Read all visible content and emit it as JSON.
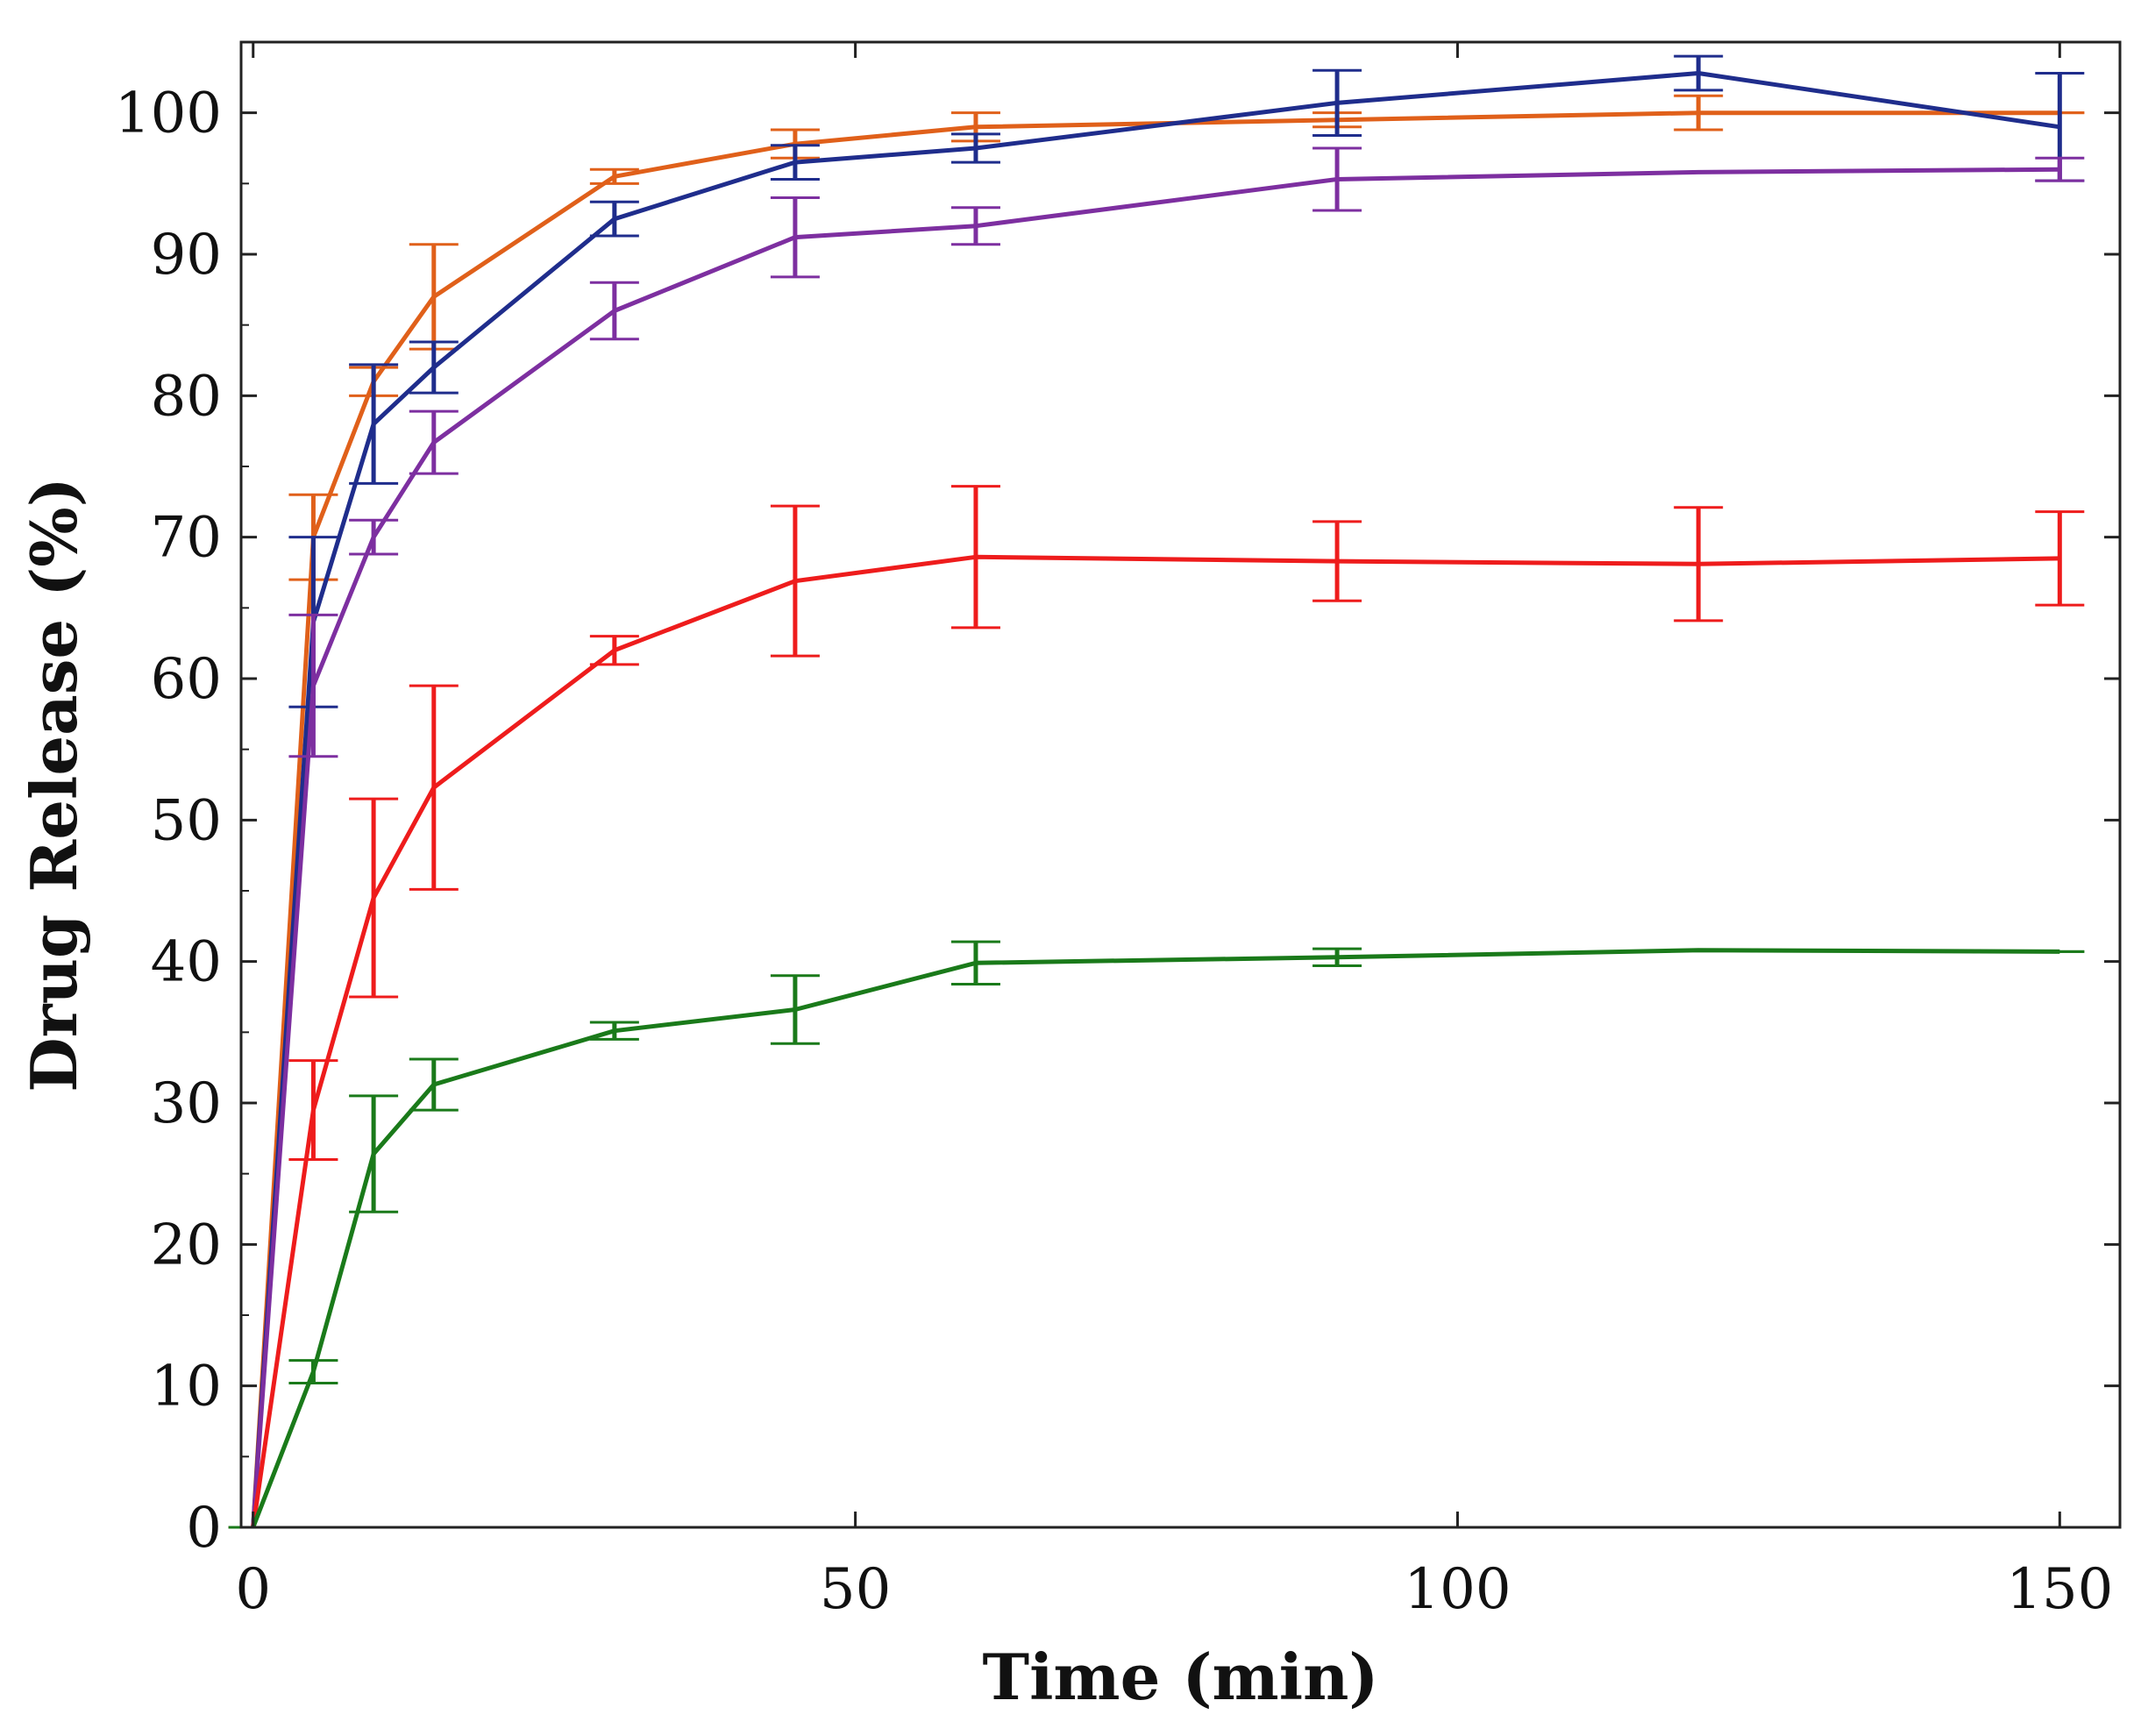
{
  "chart_data": {
    "type": "line",
    "title": "",
    "xlabel": "Time (min)",
    "ylabel": "Drug Release (%)",
    "xlim": [
      -1,
      155
    ],
    "ylim": [
      0,
      105
    ],
    "xticks": [
      0,
      50,
      100,
      150
    ],
    "yticks": [
      0,
      10,
      20,
      30,
      40,
      50,
      60,
      70,
      80,
      90,
      100
    ],
    "x": [
      0,
      5,
      10,
      15,
      30,
      45,
      60,
      90,
      120,
      150
    ],
    "series": [
      {
        "name": "orange",
        "color": "#e0601a",
        "values": [
          0,
          70,
          81,
          87,
          95.5,
          97.8,
          99,
          99.5,
          100,
          100
        ],
        "errors": [
          0,
          3,
          1,
          3.7,
          0.5,
          1,
          1,
          0.5,
          1.2,
          0
        ]
      },
      {
        "name": "blue",
        "color": "#1f2d8c",
        "values": [
          0,
          64,
          78,
          82,
          92.5,
          96.5,
          97.5,
          100.7,
          102.8,
          99
        ],
        "errors": [
          0,
          6,
          4.2,
          1.8,
          1.2,
          1.2,
          1,
          2.3,
          1.2,
          3.8
        ]
      },
      {
        "name": "purple",
        "color": "#7d2fa0",
        "values": [
          0,
          59.5,
          70,
          76.7,
          86,
          91.2,
          92,
          95.3,
          95.8,
          96
        ],
        "errors": [
          0,
          5,
          1.2,
          2.2,
          2,
          2.8,
          1.3,
          2.2,
          0,
          0.8
        ]
      },
      {
        "name": "red",
        "color": "#ee1c1c",
        "values": [
          0,
          29.5,
          44.5,
          52.3,
          62,
          66.9,
          68.6,
          68.3,
          68.1,
          68.5
        ],
        "errors": [
          0,
          3.5,
          7,
          7.2,
          1,
          5.3,
          5,
          2.8,
          4,
          3.3
        ]
      },
      {
        "name": "green",
        "color": "#1a7a1a",
        "values": [
          0,
          11,
          26.4,
          31.3,
          35.1,
          36.6,
          39.9,
          40.3,
          40.8,
          40.7
        ],
        "errors": [
          0,
          0.8,
          4.1,
          1.8,
          0.6,
          2.4,
          1.5,
          0.6,
          0,
          0
        ]
      }
    ]
  }
}
